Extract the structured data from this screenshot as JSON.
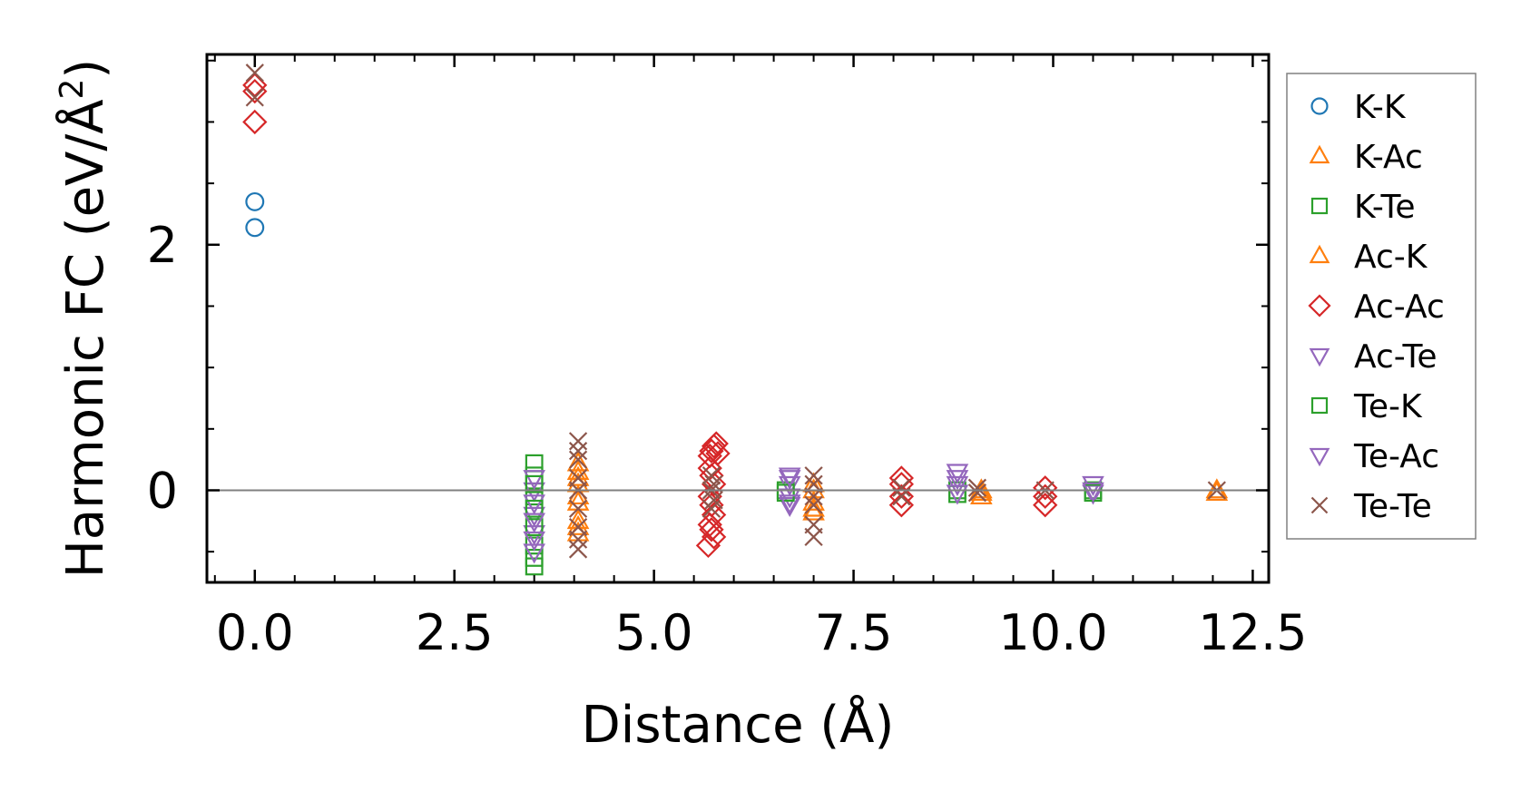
{
  "chart_data": {
    "type": "scatter",
    "title": "",
    "xlabel": "Distance (Å)",
    "ylabel_main": "Harmonic FC (eV/Å",
    "ylabel_sup": "2",
    "ylabel_close": ")",
    "xlim": [
      -0.6,
      12.7
    ],
    "ylim": [
      -0.75,
      3.55
    ],
    "xticks": [
      0.0,
      2.5,
      5.0,
      7.5,
      10.0,
      12.5
    ],
    "xtick_labels": [
      "0.0",
      "2.5",
      "5.0",
      "7.5",
      "10.0",
      "12.5"
    ],
    "yticks": [
      0,
      2
    ],
    "ytick_labels": [
      "0",
      "2"
    ],
    "reference_line_y": 0,
    "legend_position": "outside-right",
    "series": [
      {
        "name": "K-K",
        "marker": "circle",
        "filled": false,
        "color": "#1f77b4",
        "x": [
          0.0,
          0.0
        ],
        "y": [
          2.35,
          2.14
        ]
      },
      {
        "name": "K-Ac",
        "marker": "triangle-up",
        "filled": false,
        "color": "#ff7f0e",
        "x": [
          4.05,
          4.05,
          4.05,
          4.05,
          4.05,
          4.05,
          7.0,
          7.0,
          7.0,
          9.1,
          9.1,
          12.05
        ],
        "y": [
          0.15,
          0.05,
          -0.1,
          -0.25,
          -0.35,
          0.22,
          0.0,
          -0.1,
          -0.18,
          0.0,
          -0.05,
          0.0
        ]
      },
      {
        "name": "K-Te",
        "marker": "square",
        "filled": false,
        "color": "#2ca02c",
        "x": [
          3.5,
          3.5,
          3.5,
          3.5,
          3.5,
          3.5,
          6.65,
          8.8,
          10.5
        ],
        "y": [
          0.22,
          0.12,
          -0.05,
          -0.45,
          -0.55,
          -0.62,
          0.0,
          0.0,
          0.0
        ]
      },
      {
        "name": "Ac-K",
        "marker": "triangle-up",
        "filled": false,
        "color": "#ff7f0e",
        "x": [
          4.05,
          4.05,
          4.05,
          7.0,
          7.0,
          9.1,
          12.05
        ],
        "y": [
          0.1,
          -0.05,
          -0.3,
          0.05,
          -0.15,
          -0.02,
          -0.02
        ]
      },
      {
        "name": "Ac-Ac",
        "marker": "diamond",
        "filled": false,
        "color": "#d62728",
        "x": [
          0.0,
          0.0,
          0.0,
          5.7,
          5.72,
          5.75,
          5.78,
          5.8,
          5.7,
          5.72,
          5.75,
          5.7,
          5.72,
          5.75,
          5.7,
          5.72,
          5.75,
          5.68,
          8.1,
          8.1,
          8.1,
          8.1,
          9.9,
          9.9,
          9.9
        ],
        "y": [
          3.3,
          3.25,
          3.0,
          0.28,
          0.32,
          0.36,
          0.38,
          0.3,
          0.18,
          0.12,
          0.05,
          -0.05,
          -0.12,
          -0.2,
          -0.28,
          -0.32,
          -0.38,
          -0.45,
          0.1,
          0.05,
          -0.05,
          -0.12,
          0.02,
          -0.05,
          -0.12
        ]
      },
      {
        "name": "Ac-Te",
        "marker": "triangle-down",
        "filled": false,
        "color": "#9467bd",
        "x": [
          3.5,
          3.5,
          3.5,
          3.5,
          3.5,
          6.7,
          6.7,
          6.7,
          6.7,
          8.8,
          8.8,
          10.5,
          10.5
        ],
        "y": [
          0.1,
          0.0,
          -0.1,
          -0.2,
          -0.35,
          0.1,
          0.05,
          -0.05,
          -0.12,
          0.15,
          0.05,
          0.05,
          -0.02
        ]
      },
      {
        "name": "Te-K",
        "marker": "square",
        "filled": false,
        "color": "#2ca02c",
        "x": [
          3.5,
          3.5,
          3.5,
          6.65,
          8.8,
          10.5
        ],
        "y": [
          0.05,
          -0.15,
          -0.3,
          -0.02,
          -0.03,
          -0.02
        ]
      },
      {
        "name": "Te-Ac",
        "marker": "triangle-down",
        "filled": false,
        "color": "#9467bd",
        "x": [
          3.5,
          3.5,
          3.5,
          6.7,
          6.7,
          8.8,
          8.8,
          10.5
        ],
        "y": [
          -0.25,
          -0.4,
          -0.5,
          0.12,
          -0.1,
          0.1,
          -0.02,
          0.0
        ]
      },
      {
        "name": "Te-Te",
        "marker": "x",
        "filled": false,
        "color": "#8c564b",
        "x": [
          0.0,
          0.0,
          4.05,
          4.05,
          4.05,
          4.05,
          4.05,
          4.05,
          4.05,
          4.05,
          4.05,
          5.72,
          5.75,
          5.72,
          5.75,
          5.72,
          7.0,
          7.0,
          7.0,
          7.0,
          7.0,
          7.0,
          8.1,
          8.1,
          9.05,
          9.05,
          9.9,
          12.05
        ],
        "y": [
          3.4,
          3.2,
          0.4,
          0.32,
          0.25,
          0.1,
          0.0,
          -0.15,
          -0.3,
          -0.4,
          -0.48,
          0.12,
          0.05,
          0.0,
          -0.08,
          -0.15,
          0.12,
          0.05,
          -0.05,
          -0.12,
          -0.28,
          -0.38,
          0.02,
          -0.05,
          0.02,
          -0.02,
          0.0,
          0.0
        ]
      }
    ]
  },
  "colors": {
    "frame": "#000000",
    "reference_line": "#808080",
    "legend_border": "#808080"
  }
}
